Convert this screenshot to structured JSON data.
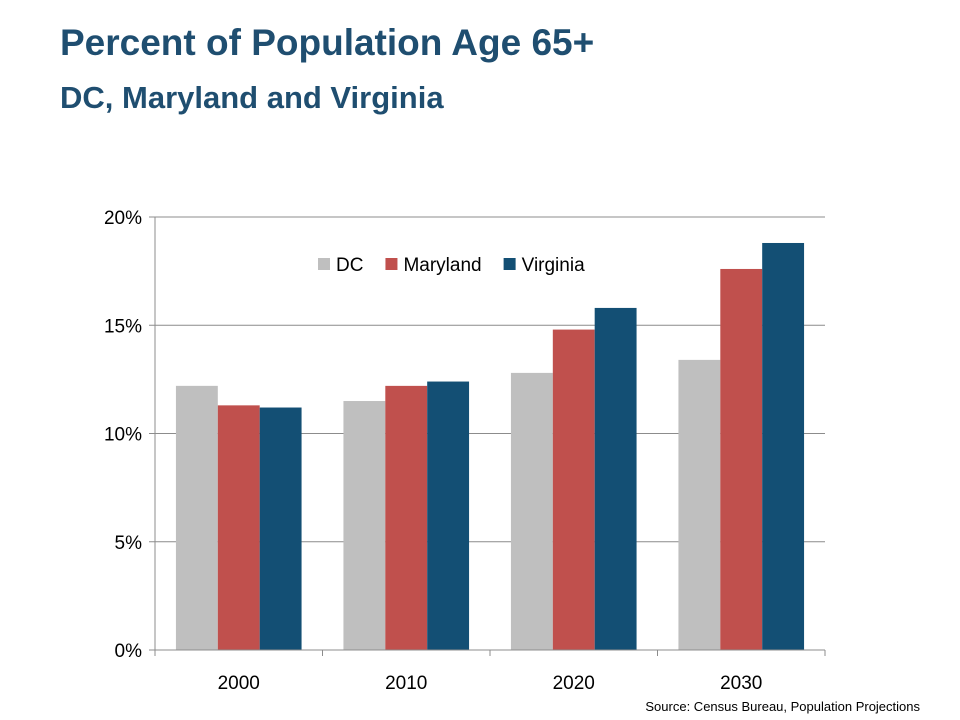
{
  "page": {
    "title": "Percent of Population Age 65+",
    "subtitle": "DC, Maryland and Virginia",
    "source": "Source: Census Bureau, Population Projections"
  },
  "chart_data": {
    "type": "bar",
    "categories": [
      "2000",
      "2010",
      "2020",
      "2030"
    ],
    "series": [
      {
        "name": "DC",
        "values": [
          12.2,
          11.5,
          12.8,
          13.4
        ],
        "color": "#bfbfbf"
      },
      {
        "name": "Maryland",
        "values": [
          11.3,
          12.2,
          14.8,
          17.6
        ],
        "color": "#c0504d"
      },
      {
        "name": "Virginia",
        "values": [
          11.2,
          12.4,
          15.8,
          18.8
        ],
        "color": "#134f74"
      }
    ],
    "ylim": [
      0,
      20
    ],
    "yticks": [
      0,
      5,
      10,
      15,
      20
    ],
    "ytick_labels": [
      "0%",
      "5%",
      "10%",
      "15%",
      "20%"
    ],
    "grid": true,
    "legend_position": "top-center"
  }
}
